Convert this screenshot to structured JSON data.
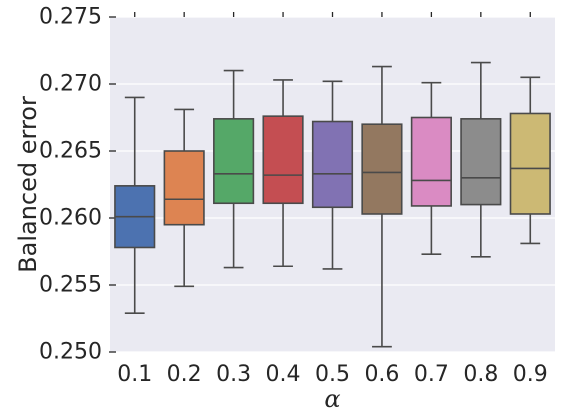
{
  "chart_data": {
    "type": "box",
    "categories": [
      "0.1",
      "0.2",
      "0.3",
      "0.4",
      "0.5",
      "0.6",
      "0.7",
      "0.8",
      "0.9"
    ],
    "xlabel": "α",
    "ylabel": "Balanced error",
    "ylim": [
      0.25,
      0.275
    ],
    "yticks": [
      "0.250",
      "0.255",
      "0.260",
      "0.265",
      "0.270",
      "0.275"
    ],
    "grid": true,
    "colors": [
      "#4C72B0",
      "#DD8452",
      "#55A868",
      "#C44E52",
      "#8172B3",
      "#937860",
      "#DA8BC3",
      "#8C8C8C",
      "#CCB974"
    ],
    "boxes": [
      {
        "whisker_low": 0.2529,
        "q1": 0.2578,
        "median": 0.2601,
        "q3": 0.2624,
        "whisker_high": 0.269
      },
      {
        "whisker_low": 0.2549,
        "q1": 0.2595,
        "median": 0.2614,
        "q3": 0.265,
        "whisker_high": 0.2681
      },
      {
        "whisker_low": 0.2563,
        "q1": 0.2611,
        "median": 0.2633,
        "q3": 0.2674,
        "whisker_high": 0.271
      },
      {
        "whisker_low": 0.2564,
        "q1": 0.2611,
        "median": 0.2632,
        "q3": 0.2676,
        "whisker_high": 0.2703
      },
      {
        "whisker_low": 0.2562,
        "q1": 0.2608,
        "median": 0.2633,
        "q3": 0.2672,
        "whisker_high": 0.2702
      },
      {
        "whisker_low": 0.2504,
        "q1": 0.2603,
        "median": 0.2634,
        "q3": 0.267,
        "whisker_high": 0.2713
      },
      {
        "whisker_low": 0.2573,
        "q1": 0.2609,
        "median": 0.2628,
        "q3": 0.2675,
        "whisker_high": 0.2701
      },
      {
        "whisker_low": 0.2571,
        "q1": 0.261,
        "median": 0.263,
        "q3": 0.2674,
        "whisker_high": 0.2716
      },
      {
        "whisker_low": 0.2581,
        "q1": 0.2603,
        "median": 0.2637,
        "q3": 0.2678,
        "whisker_high": 0.2705
      }
    ]
  }
}
